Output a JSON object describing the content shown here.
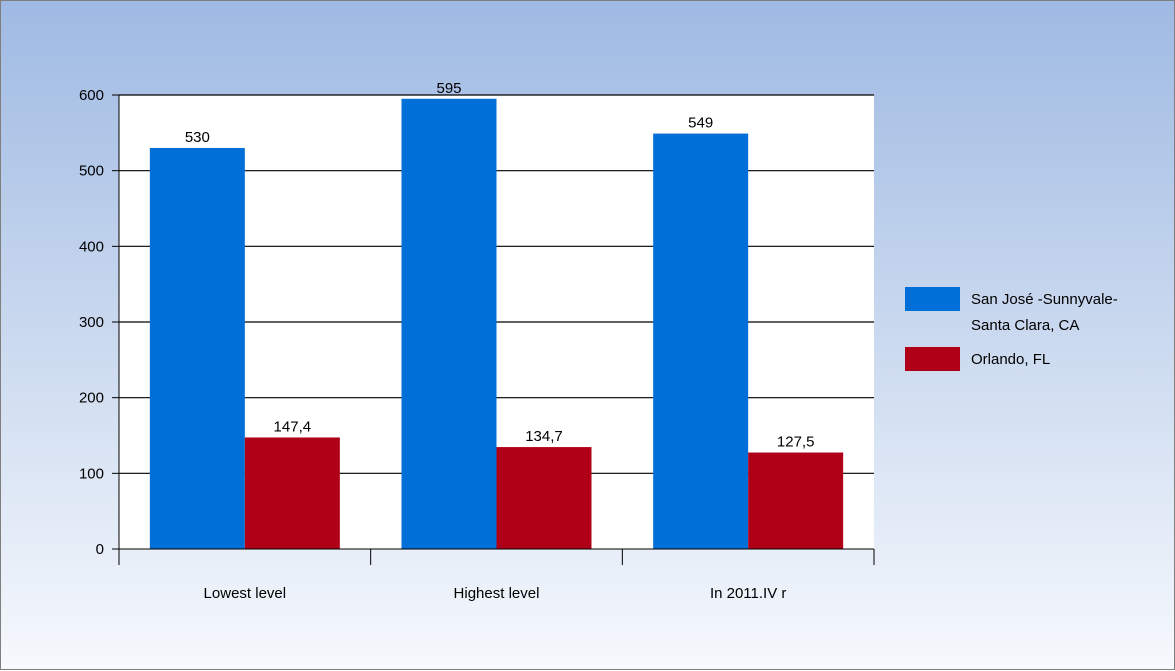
{
  "chart_data": {
    "type": "bar",
    "categories": [
      "Lowest level",
      "Highest level",
      "In 2011.IV r"
    ],
    "series": [
      {
        "name": "San José -Sunnyvale-Santa Clara, CA",
        "legend_lines": [
          "San José -Sunnyvale-",
          "Santa Clara, CA"
        ],
        "values": [
          530,
          595,
          549
        ],
        "labels": [
          "530",
          "595",
          "549"
        ],
        "color": "#0070d8"
      },
      {
        "name": "Orlando, FL",
        "legend_lines": [
          "Orlando, FL"
        ],
        "values": [
          147.4,
          134.7,
          127.5
        ],
        "labels": [
          "147,4",
          "134,7",
          "127,5"
        ],
        "color": "#b00018"
      }
    ],
    "y_ticks": [
      "0",
      "100",
      "200",
      "300",
      "400",
      "500",
      "600"
    ],
    "ylim": [
      0,
      600
    ],
    "grid": true,
    "legend_position": "right",
    "title": "",
    "xlabel": "",
    "ylabel": ""
  }
}
